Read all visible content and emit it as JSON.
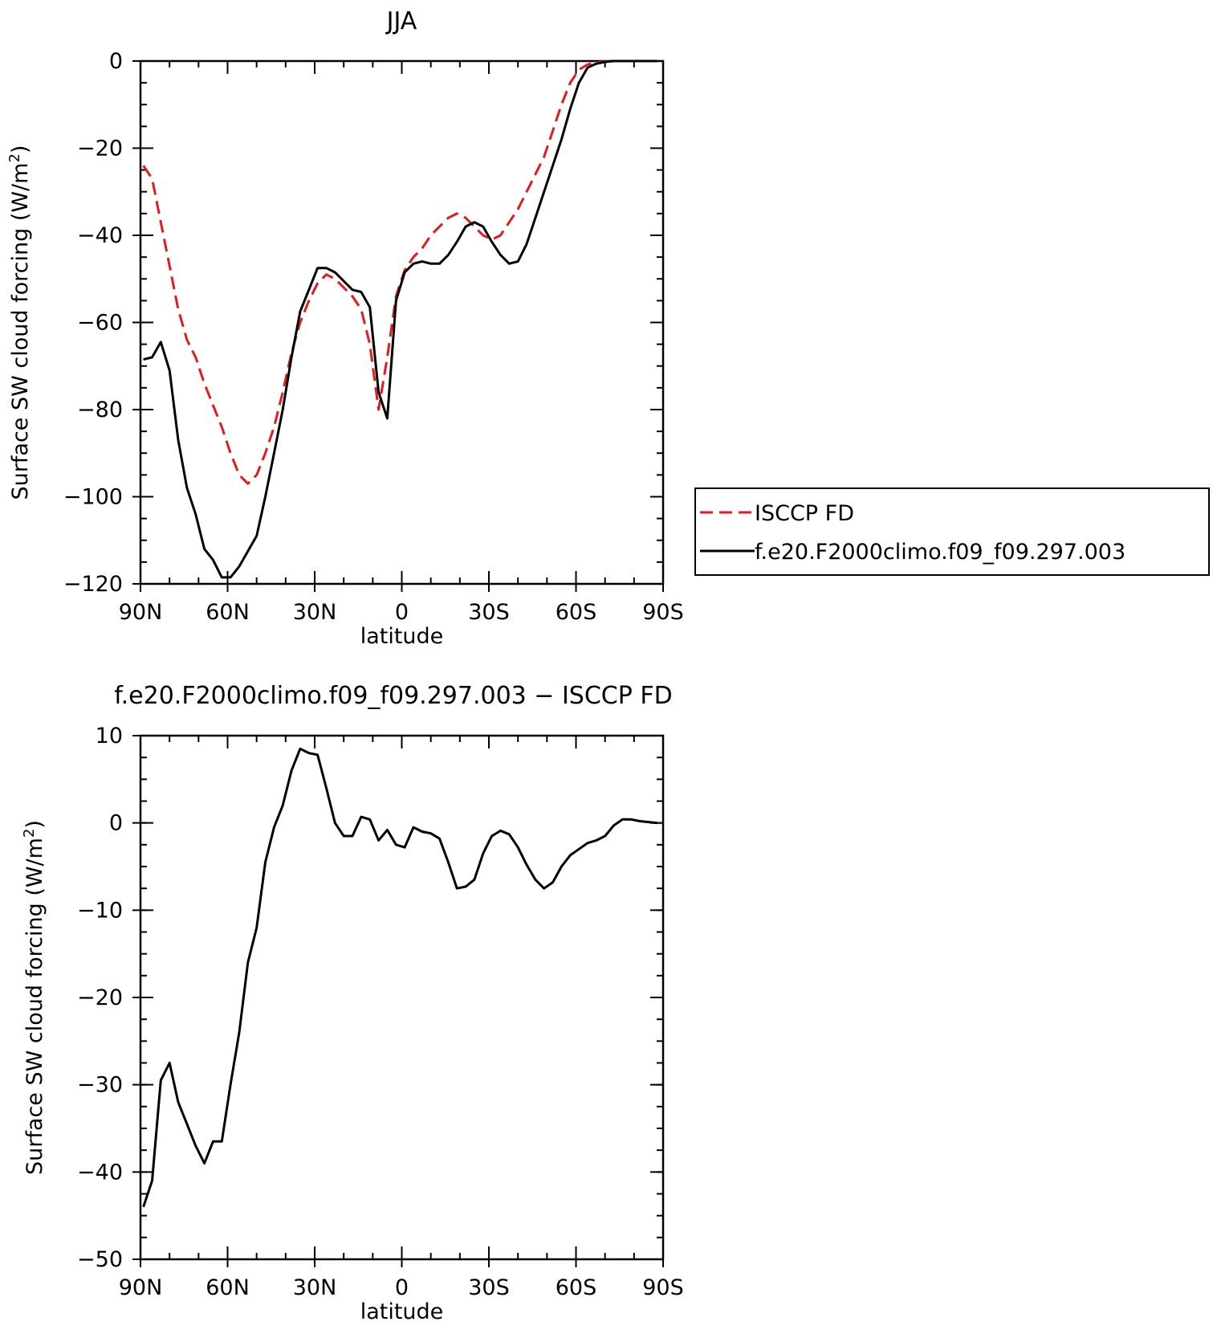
{
  "chart_data": [
    {
      "type": "line",
      "title": "JJA",
      "xlabel": "latitude",
      "ylabel": "Surface SW cloud forcing (W/m",
      "ylabel_sup": "2",
      "ylabel_end": ")",
      "x_ticks": [
        {
          "value": 90,
          "label": "90N"
        },
        {
          "value": 60,
          "label": "60N"
        },
        {
          "value": 30,
          "label": "30N"
        },
        {
          "value": 0,
          "label": "0"
        },
        {
          "value": -30,
          "label": "30S"
        },
        {
          "value": -60,
          "label": "60S"
        },
        {
          "value": -90,
          "label": "90S"
        }
      ],
      "y_ticks": [
        {
          "value": 0,
          "label": "0"
        },
        {
          "value": -20,
          "label": "−20"
        },
        {
          "value": -40,
          "label": "−40"
        },
        {
          "value": -60,
          "label": "−60"
        },
        {
          "value": -80,
          "label": "−80"
        },
        {
          "value": -100,
          "label": "−100"
        },
        {
          "value": -120,
          "label": "−120"
        }
      ],
      "xlim": [
        90,
        -90
      ],
      "ylim": [
        -120,
        0
      ],
      "legend_position": "right",
      "series": [
        {
          "name": "ISCCP FD",
          "color": "#e41a1c",
          "dash": "dashed",
          "x": [
            89,
            86,
            83,
            80,
            77,
            74,
            71,
            68,
            65,
            62,
            59,
            56,
            53,
            50,
            47,
            44,
            41,
            38,
            35,
            32,
            29,
            26,
            23,
            20,
            17,
            14,
            11,
            8,
            5,
            2,
            -1,
            -4,
            -7,
            -10,
            -13,
            -16,
            -19,
            -22,
            -25,
            -28,
            -31,
            -34,
            -37,
            -40,
            -43,
            -46,
            -49,
            -52,
            -55,
            -58,
            -61,
            -64,
            -67,
            -70,
            -73,
            -76,
            -79,
            -82,
            -85,
            -88
          ],
          "y": [
            -24,
            -27,
            -37,
            -47,
            -57,
            -64,
            -68,
            -74,
            -79,
            -84,
            -90,
            -95,
            -97,
            -95,
            -90,
            -84,
            -76,
            -67,
            -60,
            -55,
            -51,
            -49,
            -50,
            -52,
            -54,
            -57,
            -65,
            -80,
            -68,
            -54,
            -48,
            -45,
            -43,
            -40,
            -38,
            -36,
            -35,
            -36,
            -38,
            -40,
            -41,
            -40,
            -37,
            -34,
            -30,
            -26,
            -22,
            -16,
            -10,
            -5,
            -2,
            -0.8,
            -0.3,
            -0.1,
            0,
            0,
            0,
            0,
            0,
            0
          ]
        },
        {
          "name": "f.e20.F2000climo.f09_f09.297.003",
          "color": "#000000",
          "dash": "solid",
          "x": [
            89,
            86,
            83,
            80,
            77,
            74,
            71,
            68,
            65,
            62,
            59,
            56,
            53,
            50,
            47,
            44,
            41,
            38,
            35,
            32,
            29,
            26,
            23,
            20,
            17,
            14,
            11,
            8,
            5,
            2,
            -1,
            -4,
            -7,
            -10,
            -13,
            -16,
            -19,
            -22,
            -25,
            -28,
            -31,
            -34,
            -37,
            -40,
            -43,
            -46,
            -49,
            -52,
            -55,
            -58,
            -61,
            -64,
            -67,
            -70,
            -73,
            -76,
            -79,
            -82,
            -85,
            -88
          ],
          "y": [
            -68.5,
            -68,
            -64.5,
            -71,
            -87,
            -98,
            -104,
            -112,
            -114.5,
            -118.5,
            -118.5,
            -116,
            -112.5,
            -109,
            -100,
            -90,
            -80,
            -68,
            -57.5,
            -52.5,
            -47.5,
            -47.5,
            -48.5,
            -50.5,
            -52.5,
            -53,
            -56.5,
            -76,
            -82,
            -55,
            -48.5,
            -46.5,
            -46,
            -46.5,
            -46.5,
            -44.5,
            -41.5,
            -38,
            -37,
            -38,
            -41.5,
            -44.5,
            -46.5,
            -46,
            -42,
            -36,
            -30,
            -24,
            -18,
            -11,
            -5,
            -1.5,
            -0.6,
            -0.2,
            0,
            0,
            0,
            0,
            0,
            0
          ]
        }
      ]
    },
    {
      "type": "line",
      "title": "f.e20.F2000climo.f09_f09.297.003 − ISCCP FD",
      "xlabel": "latitude",
      "ylabel": "Surface SW cloud forcing (W/m",
      "ylabel_sup": "2",
      "ylabel_end": ")",
      "x_ticks": [
        {
          "value": 90,
          "label": "90N"
        },
        {
          "value": 60,
          "label": "60N"
        },
        {
          "value": 30,
          "label": "30N"
        },
        {
          "value": 0,
          "label": "0"
        },
        {
          "value": -30,
          "label": "30S"
        },
        {
          "value": -60,
          "label": "60S"
        },
        {
          "value": -90,
          "label": "90S"
        }
      ],
      "y_ticks": [
        {
          "value": 10,
          "label": "10"
        },
        {
          "value": 0,
          "label": "0"
        },
        {
          "value": -10,
          "label": "−10"
        },
        {
          "value": -20,
          "label": "−20"
        },
        {
          "value": -30,
          "label": "−30"
        },
        {
          "value": -40,
          "label": "−40"
        },
        {
          "value": -50,
          "label": "−50"
        }
      ],
      "xlim": [
        90,
        -90
      ],
      "ylim": [
        -50,
        10
      ],
      "series": [
        {
          "color": "#000000",
          "dash": "solid",
          "x": [
            89,
            86,
            83,
            80,
            77,
            74,
            71,
            68,
            65,
            62,
            59,
            56,
            53,
            50,
            47,
            44,
            41,
            38,
            35,
            32,
            29,
            26,
            23,
            20,
            17,
            14,
            11,
            8,
            5,
            2,
            -1,
            -4,
            -7,
            -10,
            -13,
            -16,
            -19,
            -22,
            -25,
            -28,
            -31,
            -34,
            -37,
            -40,
            -43,
            -46,
            -49,
            -52,
            -55,
            -58,
            -61,
            -64,
            -67,
            -70,
            -73,
            -76,
            -79,
            -82,
            -85,
            -88
          ],
          "y": [
            -44,
            -41,
            -29.5,
            -27.5,
            -32,
            -34.5,
            -37,
            -39,
            -36.5,
            -36.5,
            -30,
            -24,
            -16,
            -12,
            -4.5,
            -0.5,
            2,
            6,
            8.5,
            8,
            7.8,
            4,
            0,
            -1.5,
            -1.5,
            0.7,
            0.4,
            -2,
            -0.8,
            -2.5,
            -2.8,
            -0.5,
            -1,
            -1.2,
            -1.8,
            -4.5,
            -7.5,
            -7.3,
            -6.5,
            -3.5,
            -1.5,
            -0.9,
            -1.3,
            -2.8,
            -4.8,
            -6.5,
            -7.5,
            -6.8,
            -5,
            -3.7,
            -3,
            -2.3,
            -2,
            -1.5,
            -0.3,
            0.4,
            0.4,
            0.2,
            0.1,
            0
          ]
        }
      ]
    }
  ]
}
